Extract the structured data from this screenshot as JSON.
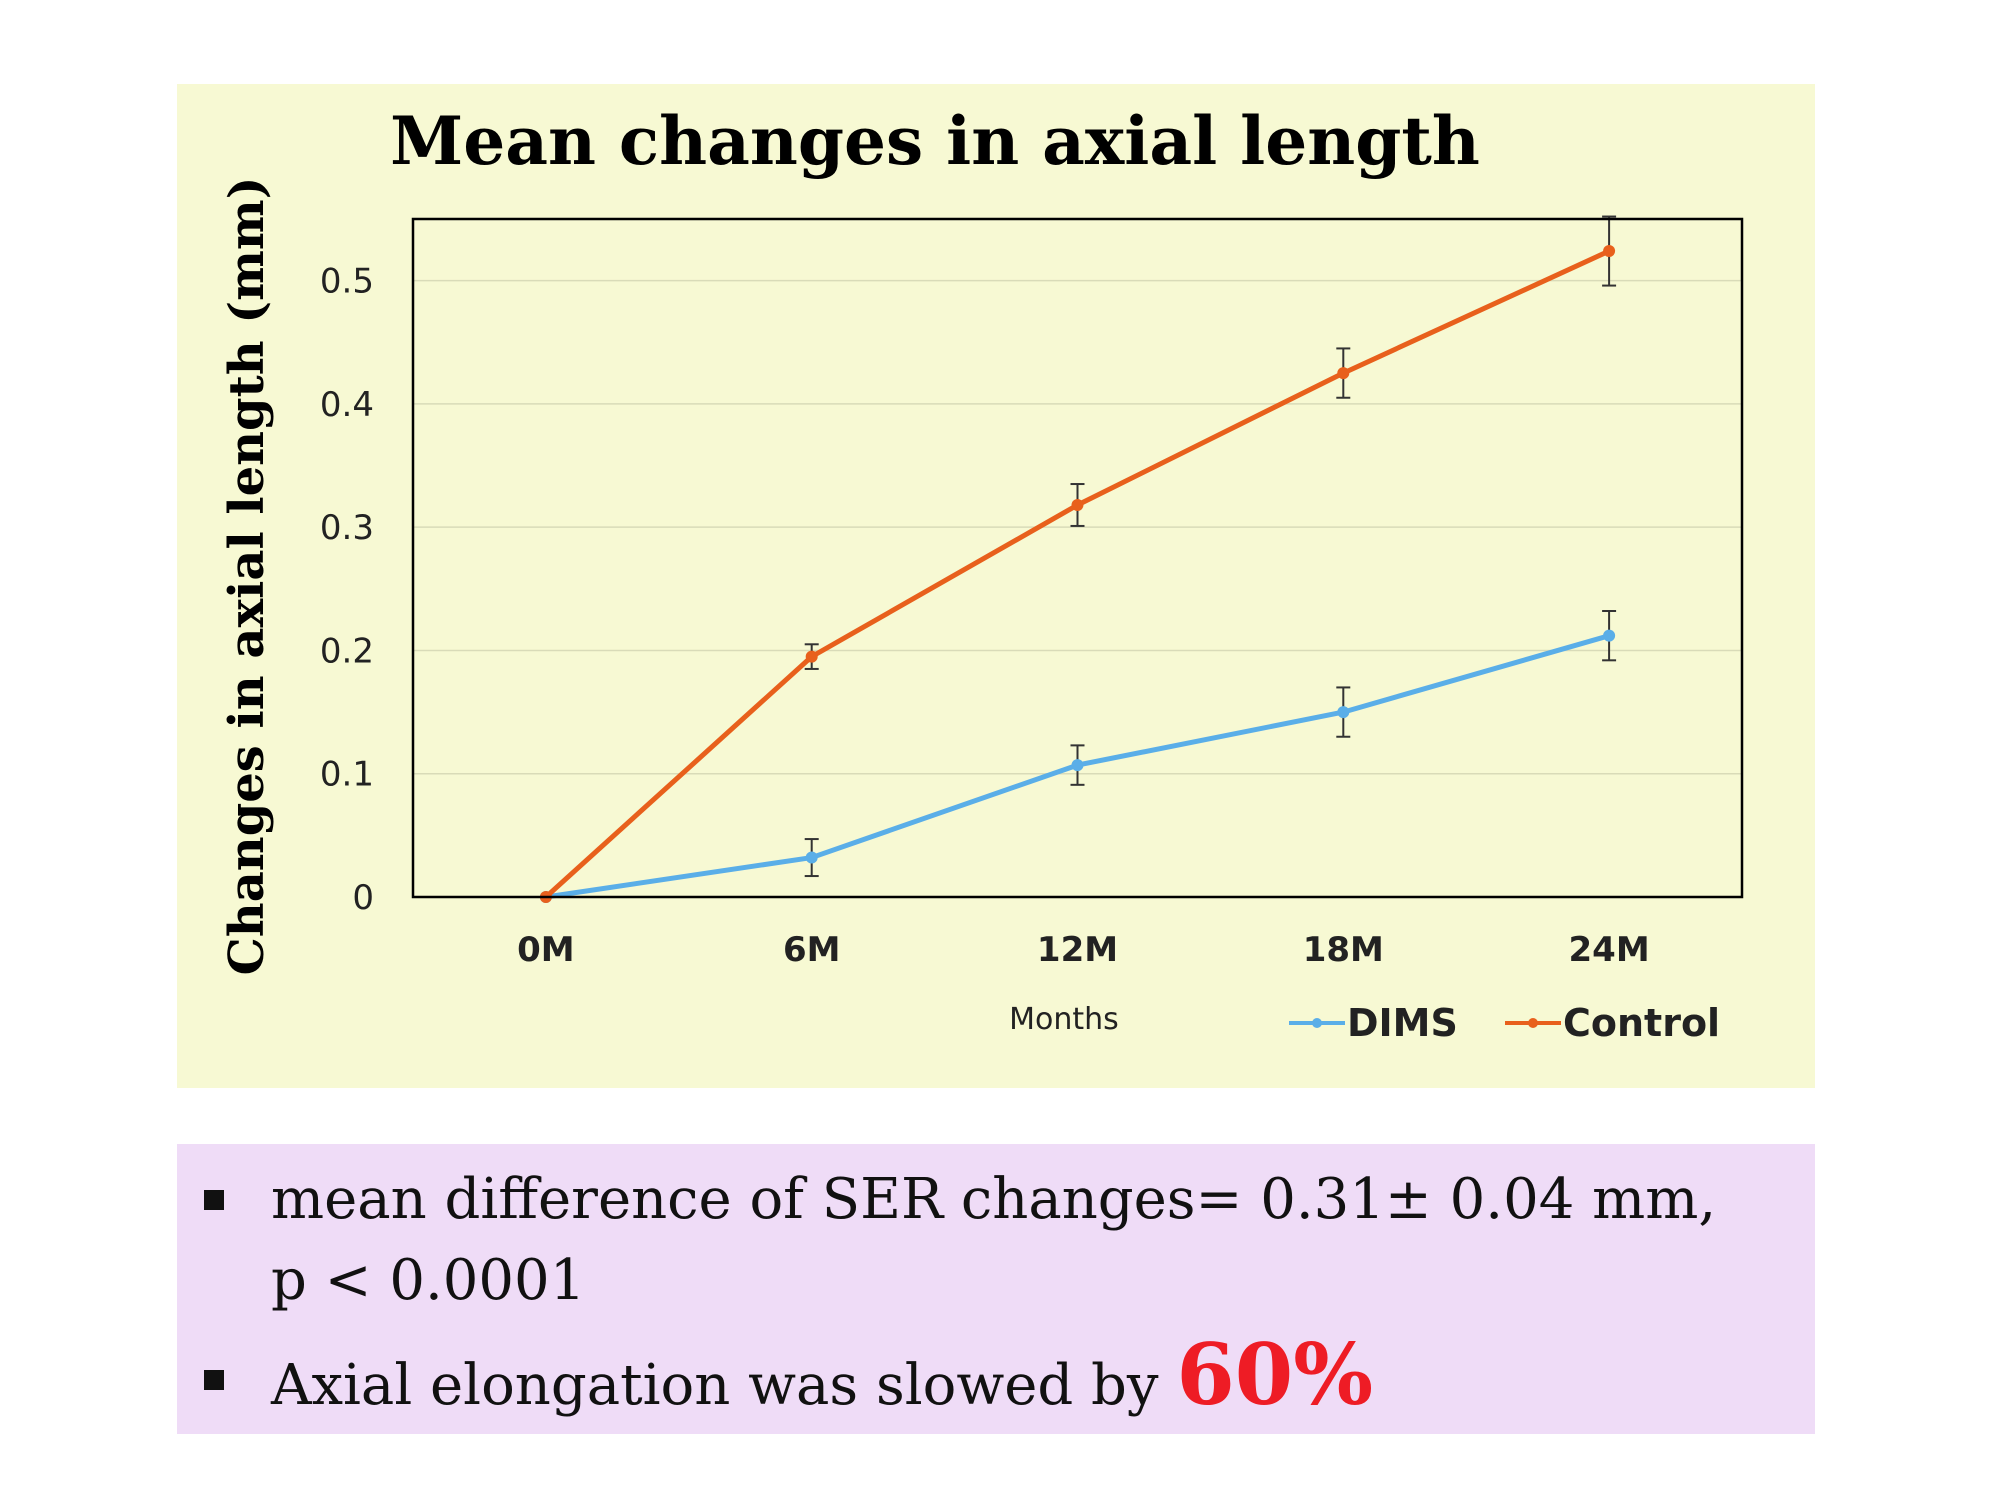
{
  "chart_data": {
    "type": "line",
    "title": "Mean changes in axial length",
    "xlabel": "Months",
    "ylabel": "Changes in axial length (mm)",
    "categories": [
      "0M",
      "6M",
      "12M",
      "18M",
      "24M"
    ],
    "ylim": [
      0,
      0.55
    ],
    "yticks": [
      0,
      0.1,
      0.2,
      0.3,
      0.4,
      0.5
    ],
    "ytick_labels": [
      "0",
      "0.1",
      "0.2",
      "0.3",
      "0.4",
      "0.5"
    ],
    "grid": true,
    "legend_position": "bottom-right",
    "series": [
      {
        "name": "DIMS",
        "color": "#5aaee8",
        "values": [
          0,
          0.032,
          0.107,
          0.15,
          0.212
        ],
        "errors": [
          0,
          0.015,
          0.016,
          0.02,
          0.02
        ]
      },
      {
        "name": "Control",
        "color": "#e8601c",
        "values": [
          0,
          0.195,
          0.318,
          0.425,
          0.524
        ],
        "errors": [
          0,
          0.01,
          0.017,
          0.02,
          0.028
        ]
      }
    ]
  },
  "summary": {
    "bullet1_line1": "mean difference of SER changes= 0.31± 0.04 mm,",
    "bullet1_line2": "p < 0.0001",
    "bullet2_text": "Axial elongation was slowed by ",
    "bullet2_highlight": "60%"
  },
  "colors": {
    "chart_background": "#f7f9d3",
    "summary_background": "#efdcf7",
    "highlight": "#ee1c25"
  }
}
